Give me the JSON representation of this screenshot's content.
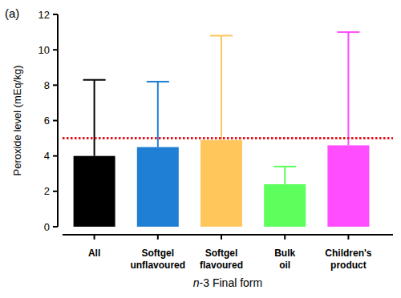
{
  "chart_data": {
    "type": "bar",
    "title": "(a)",
    "categories": [
      "All",
      "Softgel unflavoured",
      "Softgel flavoured",
      "Bulk oil",
      "Children's product"
    ],
    "values": [
      4.0,
      4.5,
      4.9,
      2.4,
      4.6
    ],
    "errors": [
      4.3,
      3.7,
      5.9,
      1.0,
      6.4
    ],
    "colors": [
      "#000000",
      "#1f7fd4",
      "#ffc65c",
      "#5cff5c",
      "#ff4dff"
    ],
    "reference_line": 5,
    "x_label": "n-3 Final form",
    "y_label": "Peroxide level (mEq/kg)",
    "ylim": [
      0,
      12
    ],
    "yticks": [
      0,
      2,
      4,
      6,
      8,
      10,
      12
    ],
    "grid": false
  }
}
